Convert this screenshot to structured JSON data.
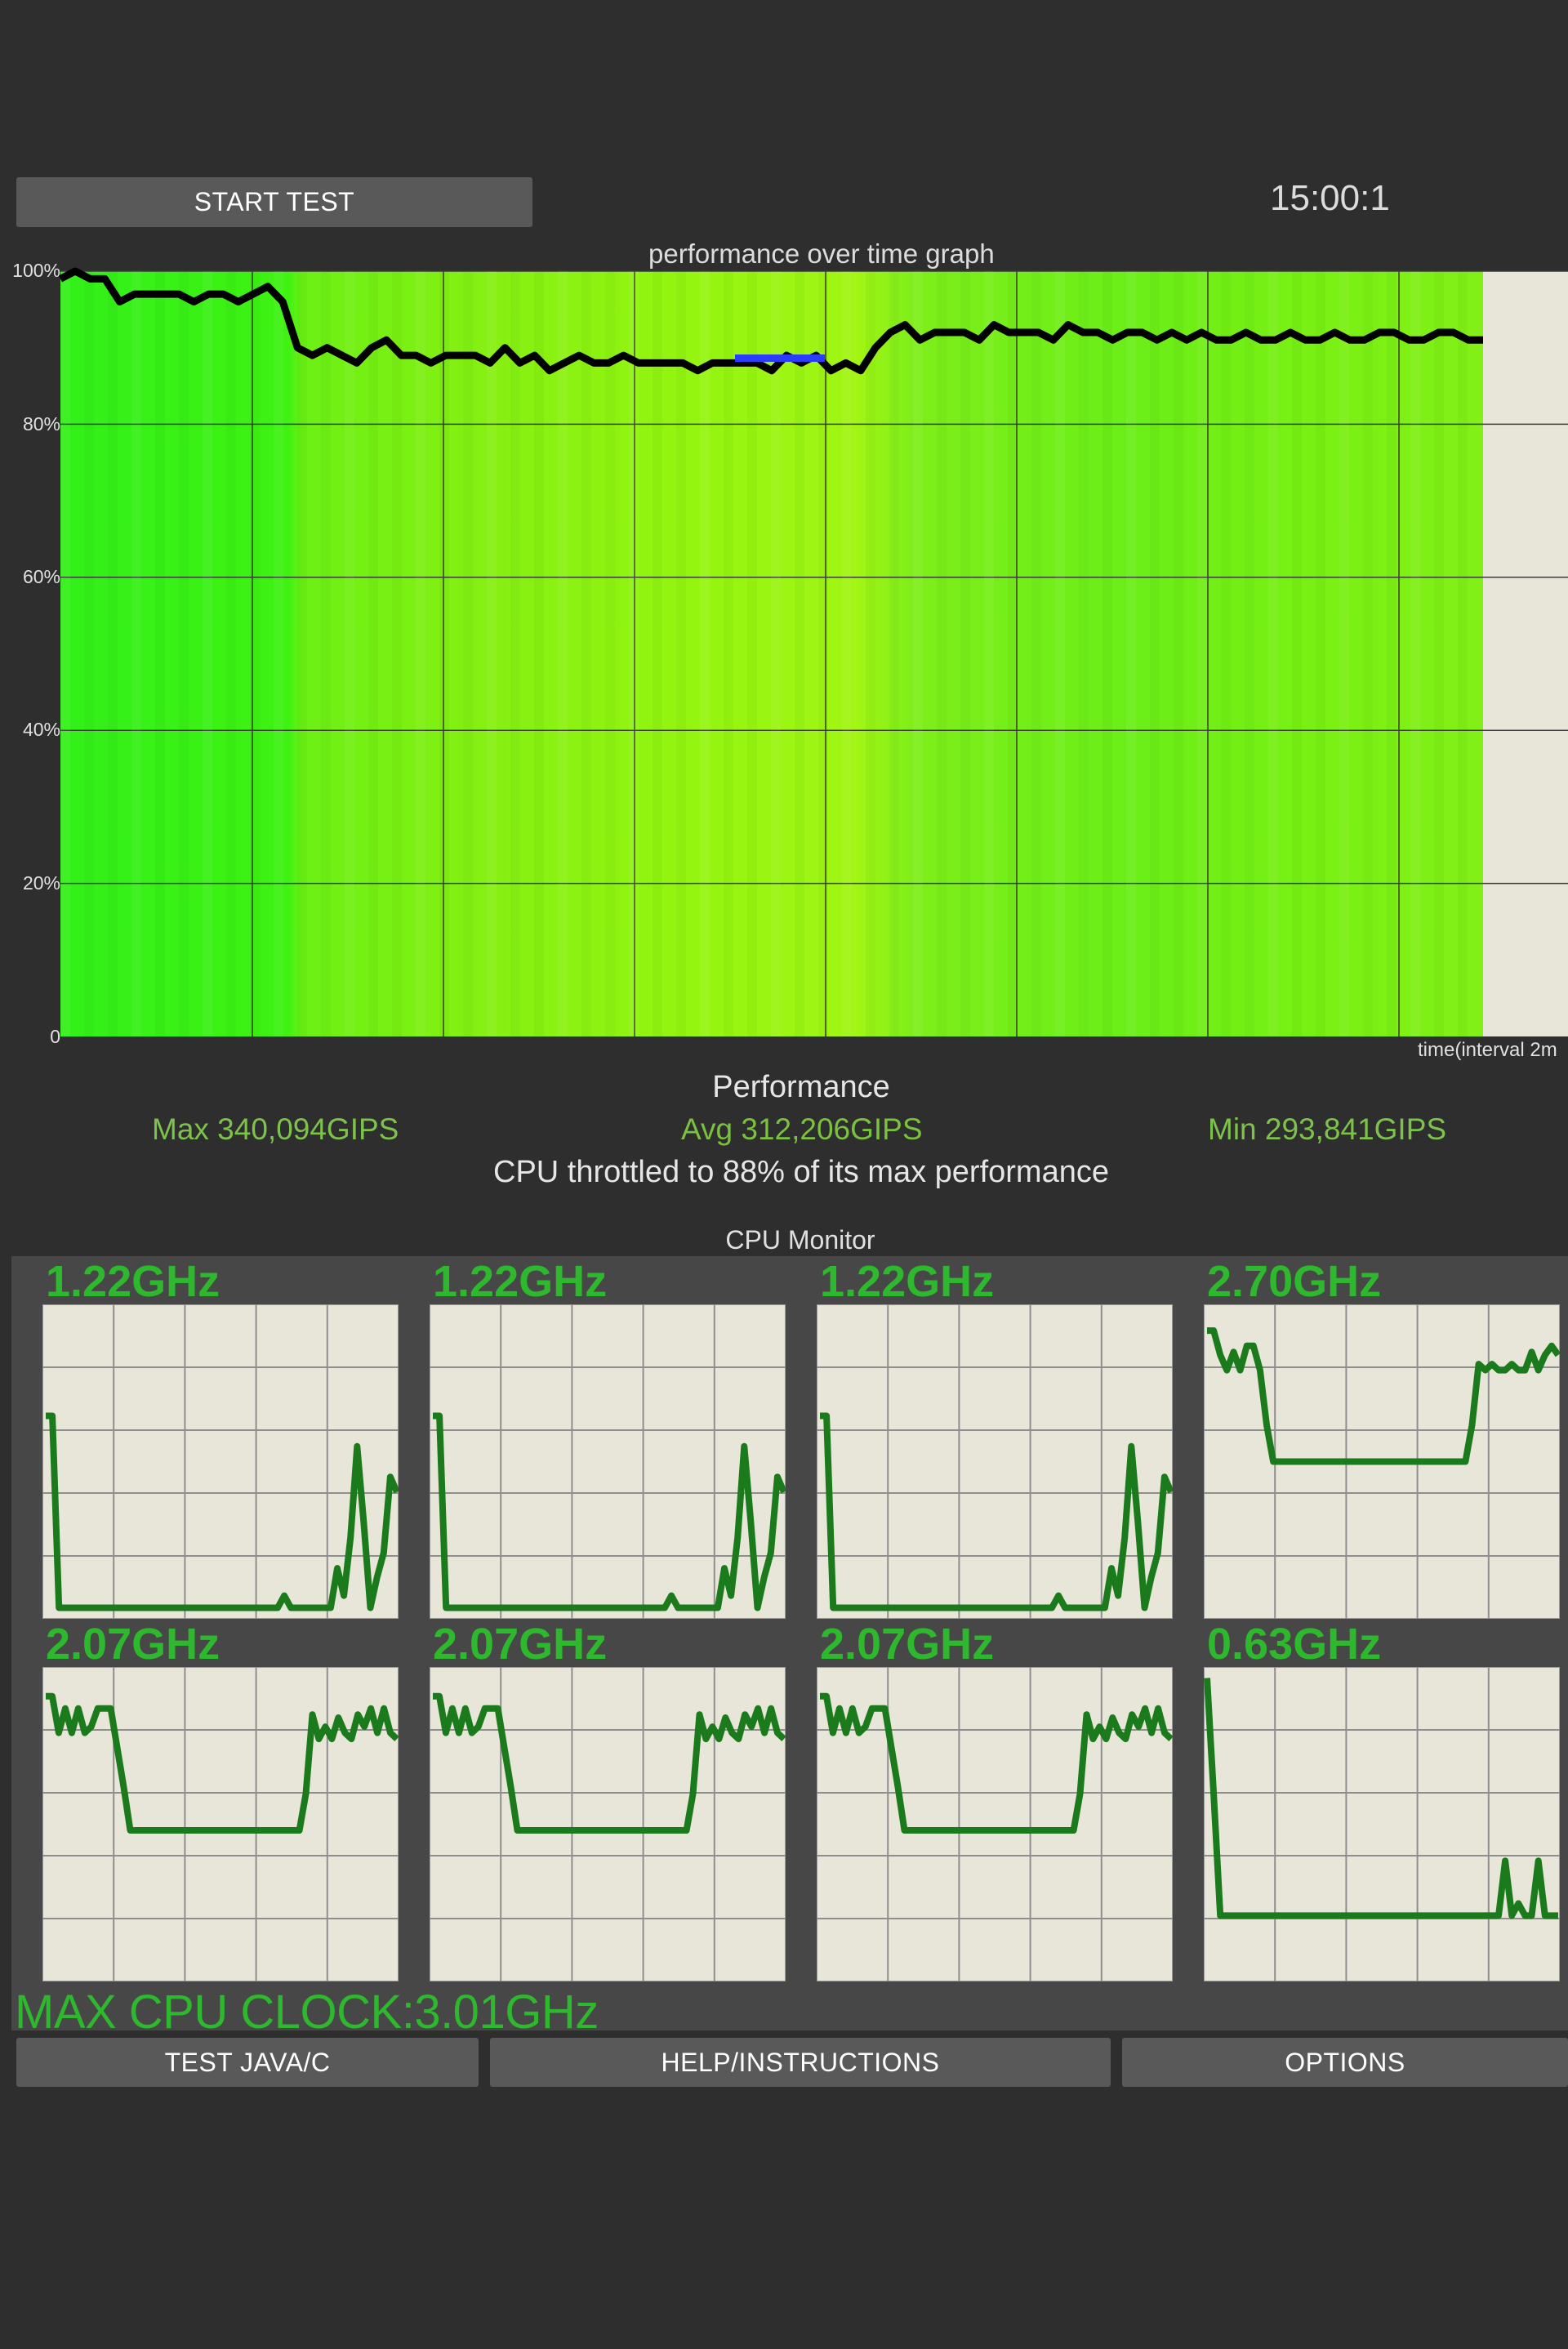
{
  "toolbar": {
    "start_label": "START TEST",
    "timer": "15:00:1"
  },
  "graph": {
    "title": "performance over time graph",
    "y_ticks": [
      "100%",
      "80%",
      "60%",
      "40%",
      "20%",
      "0"
    ],
    "x_label": "time(interval 2m"
  },
  "chart_data": {
    "type": "line",
    "title": "performance over time graph",
    "xlabel": "time(interval 2m",
    "ylabel": "",
    "ylim": [
      0,
      100
    ],
    "y_ticks": [
      "0",
      "20%",
      "40%",
      "60%",
      "80%",
      "100%"
    ],
    "grid": true,
    "series": [
      {
        "values": [
          99,
          100,
          99,
          99,
          96,
          97,
          97,
          97,
          97,
          96,
          97,
          97,
          96,
          97,
          98,
          96,
          90,
          89,
          90,
          89,
          88,
          90,
          91,
          89,
          89,
          88,
          89,
          89,
          89,
          88,
          90,
          88,
          89,
          87,
          88,
          89,
          88,
          88,
          89,
          88,
          88,
          88,
          88,
          87,
          88,
          88,
          88,
          88,
          87,
          89,
          88,
          89,
          87,
          88,
          87,
          90,
          92,
          93,
          91,
          92,
          92,
          92,
          91,
          93,
          92,
          92,
          92,
          91,
          93,
          92,
          92,
          91,
          92,
          92,
          91,
          92,
          91,
          92,
          91,
          91,
          92,
          91,
          91,
          92,
          91,
          91,
          92,
          91,
          91,
          92,
          92,
          91,
          91,
          92,
          92,
          91,
          91
        ]
      }
    ]
  },
  "performance": {
    "heading": "Performance",
    "max": "Max 340,094GIPS",
    "avg": "Avg 312,206GIPS",
    "min": "Min 293,841GIPS",
    "throttle": "CPU throttled to 88% of its max performance"
  },
  "cpu_monitor": {
    "title": "CPU Monitor",
    "cores": [
      {
        "label": "1.22GHz",
        "values": [
          0.65,
          0.65,
          0.02,
          0.02,
          0.02,
          0.02,
          0.02,
          0.02,
          0.02,
          0.02,
          0.02,
          0.02,
          0.02,
          0.02,
          0.02,
          0.02,
          0.02,
          0.02,
          0.02,
          0.02,
          0.02,
          0.02,
          0.02,
          0.02,
          0.02,
          0.02,
          0.02,
          0.02,
          0.02,
          0.02,
          0.02,
          0.02,
          0.02,
          0.02,
          0.02,
          0.02,
          0.06,
          0.02,
          0.02,
          0.02,
          0.02,
          0.02,
          0.02,
          0.02,
          0.15,
          0.06,
          0.25,
          0.55,
          0.3,
          0.02,
          0.12,
          0.2,
          0.45,
          0.4
        ]
      },
      {
        "label": "1.22GHz",
        "values": [
          0.65,
          0.65,
          0.02,
          0.02,
          0.02,
          0.02,
          0.02,
          0.02,
          0.02,
          0.02,
          0.02,
          0.02,
          0.02,
          0.02,
          0.02,
          0.02,
          0.02,
          0.02,
          0.02,
          0.02,
          0.02,
          0.02,
          0.02,
          0.02,
          0.02,
          0.02,
          0.02,
          0.02,
          0.02,
          0.02,
          0.02,
          0.02,
          0.02,
          0.02,
          0.02,
          0.02,
          0.06,
          0.02,
          0.02,
          0.02,
          0.02,
          0.02,
          0.02,
          0.02,
          0.15,
          0.06,
          0.25,
          0.55,
          0.3,
          0.02,
          0.12,
          0.2,
          0.45,
          0.4
        ]
      },
      {
        "label": "1.22GHz",
        "values": [
          0.65,
          0.65,
          0.02,
          0.02,
          0.02,
          0.02,
          0.02,
          0.02,
          0.02,
          0.02,
          0.02,
          0.02,
          0.02,
          0.02,
          0.02,
          0.02,
          0.02,
          0.02,
          0.02,
          0.02,
          0.02,
          0.02,
          0.02,
          0.02,
          0.02,
          0.02,
          0.02,
          0.02,
          0.02,
          0.02,
          0.02,
          0.02,
          0.02,
          0.02,
          0.02,
          0.02,
          0.06,
          0.02,
          0.02,
          0.02,
          0.02,
          0.02,
          0.02,
          0.02,
          0.15,
          0.06,
          0.25,
          0.55,
          0.3,
          0.02,
          0.12,
          0.2,
          0.45,
          0.4
        ]
      },
      {
        "label": "2.70GHz",
        "values": [
          0.93,
          0.93,
          0.85,
          0.8,
          0.86,
          0.8,
          0.88,
          0.88,
          0.8,
          0.62,
          0.5,
          0.5,
          0.5,
          0.5,
          0.5,
          0.5,
          0.5,
          0.5,
          0.5,
          0.5,
          0.5,
          0.5,
          0.5,
          0.5,
          0.5,
          0.5,
          0.5,
          0.5,
          0.5,
          0.5,
          0.5,
          0.5,
          0.5,
          0.5,
          0.5,
          0.5,
          0.5,
          0.5,
          0.5,
          0.5,
          0.62,
          0.82,
          0.8,
          0.82,
          0.8,
          0.8,
          0.82,
          0.8,
          0.8,
          0.86,
          0.8,
          0.85,
          0.88,
          0.85
        ]
      },
      {
        "label": "2.07GHz",
        "values": [
          0.92,
          0.92,
          0.8,
          0.88,
          0.8,
          0.88,
          0.8,
          0.82,
          0.88,
          0.88,
          0.88,
          0.75,
          0.62,
          0.48,
          0.48,
          0.48,
          0.48,
          0.48,
          0.48,
          0.48,
          0.48,
          0.48,
          0.48,
          0.48,
          0.48,
          0.48,
          0.48,
          0.48,
          0.48,
          0.48,
          0.48,
          0.48,
          0.48,
          0.48,
          0.48,
          0.48,
          0.48,
          0.48,
          0.48,
          0.48,
          0.6,
          0.86,
          0.78,
          0.82,
          0.78,
          0.85,
          0.8,
          0.78,
          0.86,
          0.82,
          0.88,
          0.8,
          0.88,
          0.8,
          0.78
        ]
      },
      {
        "label": "2.07GHz",
        "values": [
          0.92,
          0.92,
          0.8,
          0.88,
          0.8,
          0.88,
          0.8,
          0.82,
          0.88,
          0.88,
          0.88,
          0.75,
          0.62,
          0.48,
          0.48,
          0.48,
          0.48,
          0.48,
          0.48,
          0.48,
          0.48,
          0.48,
          0.48,
          0.48,
          0.48,
          0.48,
          0.48,
          0.48,
          0.48,
          0.48,
          0.48,
          0.48,
          0.48,
          0.48,
          0.48,
          0.48,
          0.48,
          0.48,
          0.48,
          0.48,
          0.6,
          0.86,
          0.78,
          0.82,
          0.78,
          0.85,
          0.8,
          0.78,
          0.86,
          0.82,
          0.88,
          0.8,
          0.88,
          0.8,
          0.78
        ]
      },
      {
        "label": "2.07GHz",
        "values": [
          0.92,
          0.92,
          0.8,
          0.88,
          0.8,
          0.88,
          0.8,
          0.82,
          0.88,
          0.88,
          0.88,
          0.75,
          0.62,
          0.48,
          0.48,
          0.48,
          0.48,
          0.48,
          0.48,
          0.48,
          0.48,
          0.48,
          0.48,
          0.48,
          0.48,
          0.48,
          0.48,
          0.48,
          0.48,
          0.48,
          0.48,
          0.48,
          0.48,
          0.48,
          0.48,
          0.48,
          0.48,
          0.48,
          0.48,
          0.48,
          0.6,
          0.86,
          0.78,
          0.82,
          0.78,
          0.85,
          0.8,
          0.78,
          0.86,
          0.82,
          0.88,
          0.8,
          0.88,
          0.8,
          0.78
        ]
      },
      {
        "label": "0.63GHz",
        "values": [
          0.98,
          0.6,
          0.2,
          0.2,
          0.2,
          0.2,
          0.2,
          0.2,
          0.2,
          0.2,
          0.2,
          0.2,
          0.2,
          0.2,
          0.2,
          0.2,
          0.2,
          0.2,
          0.2,
          0.2,
          0.2,
          0.2,
          0.2,
          0.2,
          0.2,
          0.2,
          0.2,
          0.2,
          0.2,
          0.2,
          0.2,
          0.2,
          0.2,
          0.2,
          0.2,
          0.2,
          0.2,
          0.2,
          0.2,
          0.2,
          0.2,
          0.2,
          0.2,
          0.2,
          0.2,
          0.38,
          0.2,
          0.24,
          0.2,
          0.2,
          0.38,
          0.2,
          0.2,
          0.2
        ]
      }
    ],
    "max_clock": "MAX CPU CLOCK:3.01GHz"
  },
  "bottom_bar": {
    "java_c_label": "TEST JAVA/C",
    "help_label": "HELP/INSTRUCTIONS",
    "options_label": "OPTIONS"
  },
  "colors": {
    "background": "#2e2e2e",
    "button": "#595959",
    "graph_bg": "#e8e6d8",
    "perf_line": "#000000",
    "min_segment": "#2a3dff",
    "core_line": "#1b7a1b",
    "core_label": "#2db82d",
    "stat_text": "#7dc24a"
  }
}
